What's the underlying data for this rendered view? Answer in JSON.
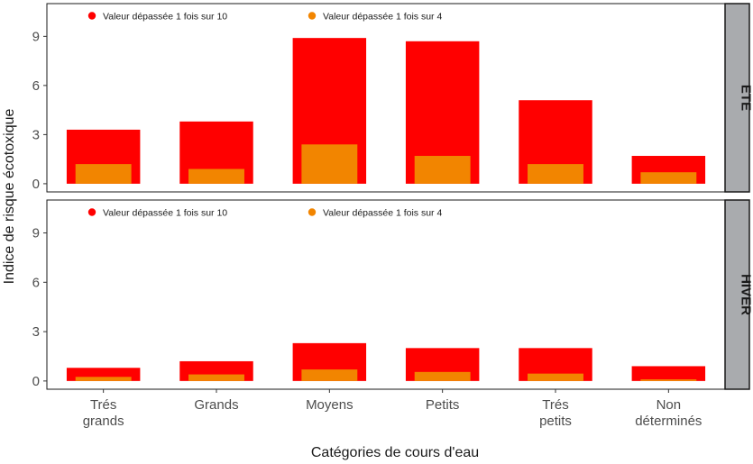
{
  "chart_data": {
    "type": "bar",
    "xlabel": "Catégories de cours d'eau",
    "ylabel": "Indice de risque écotoxique",
    "ylim": [
      -0.5,
      11
    ],
    "yticks": [
      0,
      3,
      6,
      9
    ],
    "grid": false,
    "legend_position": "top-left",
    "categories": [
      [
        "Trés",
        "grands"
      ],
      [
        "Grands"
      ],
      [
        "Moyens"
      ],
      [
        "Petits"
      ],
      [
        "Trés",
        "petits"
      ],
      [
        "Non",
        "déterminés"
      ]
    ],
    "series_legend": [
      {
        "name": "Valeur dépassée 1 fois sur 10",
        "color": "#ff0000"
      },
      {
        "name": "Valeur dépassée 1 fois sur 4",
        "color": "#f28500"
      }
    ],
    "panels": [
      {
        "strip": "ETE",
        "series": [
          {
            "values": [
              3.3,
              3.8,
              8.9,
              8.7,
              5.1,
              1.7
            ]
          },
          {
            "values": [
              1.2,
              0.9,
              2.4,
              1.7,
              1.2,
              0.7
            ]
          }
        ]
      },
      {
        "strip": "HIVER",
        "series": [
          {
            "values": [
              0.8,
              1.2,
              2.3,
              2.0,
              2.0,
              0.9
            ]
          },
          {
            "values": [
              0.25,
              0.4,
              0.7,
              0.55,
              0.45,
              0.1
            ]
          }
        ]
      }
    ]
  }
}
